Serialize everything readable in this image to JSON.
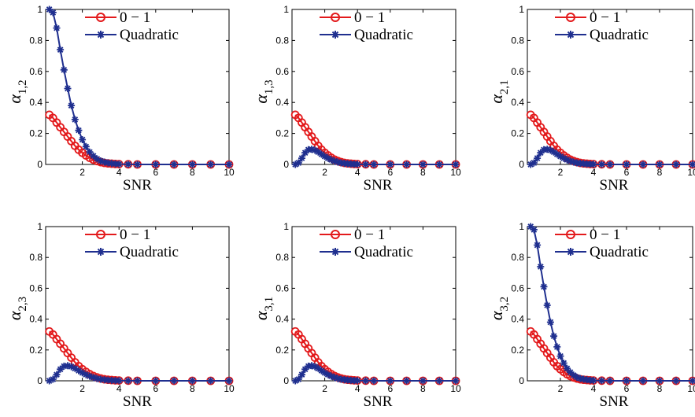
{
  "chart_data": [
    {
      "type": "line",
      "ylabel_symbol": "α",
      "ylabel_sub": "1,2",
      "xlabel": "SNR",
      "xlim": [
        0,
        10
      ],
      "ylim": [
        0,
        1
      ],
      "xticks": [
        "2",
        "4",
        "6",
        "8",
        "10"
      ],
      "yticks": [
        "0",
        "0.2",
        "0.4",
        "0.6",
        "0.8",
        "1"
      ],
      "legend_position": "top",
      "series": [
        {
          "name": "0 − 1",
          "color": "#e31a1c",
          "marker": "circle",
          "x": [
            0.2,
            0.4,
            0.6,
            0.8,
            1.0,
            1.2,
            1.4,
            1.6,
            1.8,
            2.0,
            2.2,
            2.4,
            2.6,
            2.8,
            3.0,
            3.2,
            3.4,
            3.6,
            3.8,
            4.0,
            4.5,
            5,
            6,
            7,
            8,
            9,
            10
          ],
          "y": [
            0.32,
            0.3,
            0.27,
            0.24,
            0.21,
            0.18,
            0.15,
            0.12,
            0.095,
            0.075,
            0.058,
            0.043,
            0.031,
            0.022,
            0.015,
            0.01,
            0.007,
            0.005,
            0.003,
            0.002,
            0.001,
            0,
            0,
            0,
            0,
            0,
            0
          ]
        },
        {
          "name": "Quadratic",
          "color": "#1f2f8f",
          "marker": "star",
          "x": [
            0.2,
            0.4,
            0.6,
            0.8,
            1.0,
            1.2,
            1.4,
            1.6,
            1.8,
            2.0,
            2.2,
            2.4,
            2.6,
            2.8,
            3.0,
            3.2,
            3.4,
            3.6,
            3.8,
            4.0,
            4.5,
            5,
            6,
            7,
            8,
            9,
            10
          ],
          "y": [
            1.0,
            0.98,
            0.88,
            0.74,
            0.61,
            0.49,
            0.38,
            0.29,
            0.22,
            0.16,
            0.115,
            0.08,
            0.055,
            0.036,
            0.023,
            0.015,
            0.01,
            0.006,
            0.004,
            0.002,
            0.001,
            0,
            0,
            0,
            0,
            0,
            0
          ]
        }
      ]
    },
    {
      "type": "line",
      "ylabel_symbol": "α",
      "ylabel_sub": "1,3",
      "xlabel": "SNR",
      "xlim": [
        0,
        10
      ],
      "ylim": [
        0,
        1
      ],
      "xticks": [
        "2",
        "4",
        "6",
        "8",
        "10"
      ],
      "yticks": [
        "0",
        "0.2",
        "0.4",
        "0.6",
        "0.8",
        "1"
      ],
      "legend_position": "top",
      "series": [
        {
          "name": "0 − 1",
          "color": "#e31a1c",
          "marker": "circle",
          "x": [
            0.2,
            0.4,
            0.6,
            0.8,
            1.0,
            1.2,
            1.4,
            1.6,
            1.8,
            2.0,
            2.2,
            2.4,
            2.6,
            2.8,
            3.0,
            3.2,
            3.4,
            3.6,
            3.8,
            4.0,
            4.5,
            5,
            6,
            7,
            8,
            9,
            10
          ],
          "y": [
            0.32,
            0.3,
            0.27,
            0.24,
            0.21,
            0.18,
            0.15,
            0.12,
            0.095,
            0.075,
            0.058,
            0.043,
            0.031,
            0.022,
            0.015,
            0.01,
            0.007,
            0.005,
            0.003,
            0.002,
            0.001,
            0,
            0,
            0,
            0,
            0,
            0
          ]
        },
        {
          "name": "Quadratic",
          "color": "#1f2f8f",
          "marker": "star",
          "x": [
            0.2,
            0.4,
            0.6,
            0.8,
            1.0,
            1.2,
            1.4,
            1.6,
            1.8,
            2.0,
            2.2,
            2.4,
            2.6,
            2.8,
            3.0,
            3.2,
            3.4,
            3.6,
            3.8,
            4.0,
            4.5,
            5,
            6,
            7,
            8,
            9,
            10
          ],
          "y": [
            0.0,
            0.01,
            0.04,
            0.075,
            0.095,
            0.098,
            0.092,
            0.08,
            0.066,
            0.052,
            0.04,
            0.03,
            0.022,
            0.015,
            0.01,
            0.007,
            0.005,
            0.003,
            0.002,
            0.001,
            0.0005,
            0,
            0,
            0,
            0,
            0,
            0
          ]
        }
      ]
    },
    {
      "type": "line",
      "ylabel_symbol": "α",
      "ylabel_sub": "2,1",
      "xlabel": "SNR",
      "xlim": [
        0,
        10
      ],
      "ylim": [
        0,
        1
      ],
      "xticks": [
        "2",
        "4",
        "6",
        "8",
        "10"
      ],
      "yticks": [
        "0",
        "0.2",
        "0.4",
        "0.6",
        "0.8",
        "1"
      ],
      "legend_position": "top",
      "series": [
        {
          "name": "0 − 1",
          "color": "#e31a1c",
          "marker": "circle",
          "x": [
            0.2,
            0.4,
            0.6,
            0.8,
            1.0,
            1.2,
            1.4,
            1.6,
            1.8,
            2.0,
            2.2,
            2.4,
            2.6,
            2.8,
            3.0,
            3.2,
            3.4,
            3.6,
            3.8,
            4.0,
            4.5,
            5,
            6,
            7,
            8,
            9,
            10
          ],
          "y": [
            0.32,
            0.3,
            0.27,
            0.24,
            0.21,
            0.18,
            0.15,
            0.12,
            0.095,
            0.075,
            0.058,
            0.043,
            0.031,
            0.022,
            0.015,
            0.01,
            0.007,
            0.005,
            0.003,
            0.002,
            0.001,
            0,
            0,
            0,
            0,
            0,
            0
          ]
        },
        {
          "name": "Quadratic",
          "color": "#1f2f8f",
          "marker": "star",
          "x": [
            0.2,
            0.4,
            0.6,
            0.8,
            1.0,
            1.2,
            1.4,
            1.6,
            1.8,
            2.0,
            2.2,
            2.4,
            2.6,
            2.8,
            3.0,
            3.2,
            3.4,
            3.6,
            3.8,
            4.0,
            4.5,
            5,
            6,
            7,
            8,
            9,
            10
          ],
          "y": [
            0.0,
            0.01,
            0.04,
            0.075,
            0.095,
            0.098,
            0.092,
            0.08,
            0.066,
            0.052,
            0.04,
            0.03,
            0.022,
            0.015,
            0.01,
            0.007,
            0.005,
            0.003,
            0.002,
            0.001,
            0.0005,
            0,
            0,
            0,
            0,
            0,
            0
          ]
        }
      ]
    },
    {
      "type": "line",
      "ylabel_symbol": "α",
      "ylabel_sub": "2,3",
      "xlabel": "SNR",
      "xlim": [
        0,
        10
      ],
      "ylim": [
        0,
        1
      ],
      "xticks": [
        "2",
        "4",
        "6",
        "8",
        "10"
      ],
      "yticks": [
        "0",
        "0.2",
        "0.4",
        "0.6",
        "0.8",
        "1"
      ],
      "legend_position": "top",
      "series": [
        {
          "name": "0 − 1",
          "color": "#e31a1c",
          "marker": "circle",
          "x": [
            0.2,
            0.4,
            0.6,
            0.8,
            1.0,
            1.2,
            1.4,
            1.6,
            1.8,
            2.0,
            2.2,
            2.4,
            2.6,
            2.8,
            3.0,
            3.2,
            3.4,
            3.6,
            3.8,
            4.0,
            4.5,
            5,
            6,
            7,
            8,
            9,
            10
          ],
          "y": [
            0.32,
            0.3,
            0.27,
            0.24,
            0.21,
            0.18,
            0.15,
            0.12,
            0.095,
            0.075,
            0.058,
            0.043,
            0.031,
            0.022,
            0.015,
            0.01,
            0.007,
            0.005,
            0.003,
            0.002,
            0.001,
            0,
            0,
            0,
            0,
            0,
            0
          ]
        },
        {
          "name": "Quadratic",
          "color": "#1f2f8f",
          "marker": "star",
          "x": [
            0.2,
            0.4,
            0.6,
            0.8,
            1.0,
            1.2,
            1.4,
            1.6,
            1.8,
            2.0,
            2.2,
            2.4,
            2.6,
            2.8,
            3.0,
            3.2,
            3.4,
            3.6,
            3.8,
            4.0,
            4.5,
            5,
            6,
            7,
            8,
            9,
            10
          ],
          "y": [
            0.0,
            0.01,
            0.04,
            0.075,
            0.095,
            0.098,
            0.092,
            0.08,
            0.066,
            0.052,
            0.04,
            0.03,
            0.022,
            0.015,
            0.01,
            0.007,
            0.005,
            0.003,
            0.002,
            0.001,
            0.0005,
            0,
            0,
            0,
            0,
            0,
            0
          ]
        }
      ]
    },
    {
      "type": "line",
      "ylabel_symbol": "α",
      "ylabel_sub": "3,1",
      "xlabel": "SNR",
      "xlim": [
        0,
        10
      ],
      "ylim": [
        0,
        1
      ],
      "xticks": [
        "2",
        "4",
        "6",
        "8",
        "10"
      ],
      "yticks": [
        "0",
        "0.2",
        "0.4",
        "0.6",
        "0.8",
        "1"
      ],
      "legend_position": "top",
      "series": [
        {
          "name": "0 − 1",
          "color": "#e31a1c",
          "marker": "circle",
          "x": [
            0.2,
            0.4,
            0.6,
            0.8,
            1.0,
            1.2,
            1.4,
            1.6,
            1.8,
            2.0,
            2.2,
            2.4,
            2.6,
            2.8,
            3.0,
            3.2,
            3.4,
            3.6,
            3.8,
            4.0,
            4.5,
            5,
            6,
            7,
            8,
            9,
            10
          ],
          "y": [
            0.32,
            0.3,
            0.27,
            0.24,
            0.21,
            0.18,
            0.15,
            0.12,
            0.095,
            0.075,
            0.058,
            0.043,
            0.031,
            0.022,
            0.015,
            0.01,
            0.007,
            0.005,
            0.003,
            0.002,
            0.001,
            0,
            0,
            0,
            0,
            0,
            0
          ]
        },
        {
          "name": "Quadratic",
          "color": "#1f2f8f",
          "marker": "star",
          "x": [
            0.2,
            0.4,
            0.6,
            0.8,
            1.0,
            1.2,
            1.4,
            1.6,
            1.8,
            2.0,
            2.2,
            2.4,
            2.6,
            2.8,
            3.0,
            3.2,
            3.4,
            3.6,
            3.8,
            4.0,
            4.5,
            5,
            6,
            7,
            8,
            9,
            10
          ],
          "y": [
            0.0,
            0.01,
            0.04,
            0.075,
            0.095,
            0.098,
            0.092,
            0.08,
            0.066,
            0.052,
            0.04,
            0.03,
            0.022,
            0.015,
            0.01,
            0.007,
            0.005,
            0.003,
            0.002,
            0.001,
            0.0005,
            0,
            0,
            0,
            0,
            0,
            0
          ]
        }
      ]
    },
    {
      "type": "line",
      "ylabel_symbol": "α",
      "ylabel_sub": "3,2",
      "xlabel": "SNR",
      "xlim": [
        0,
        10
      ],
      "ylim": [
        0,
        1
      ],
      "xticks": [
        "2",
        "4",
        "6",
        "8",
        "10"
      ],
      "yticks": [
        "0",
        "0.2",
        "0.4",
        "0.6",
        "0.8",
        "1"
      ],
      "legend_position": "top",
      "series": [
        {
          "name": "0 − 1",
          "color": "#e31a1c",
          "marker": "circle",
          "x": [
            0.2,
            0.4,
            0.6,
            0.8,
            1.0,
            1.2,
            1.4,
            1.6,
            1.8,
            2.0,
            2.2,
            2.4,
            2.6,
            2.8,
            3.0,
            3.2,
            3.4,
            3.6,
            3.8,
            4.0,
            4.5,
            5,
            6,
            7,
            8,
            9,
            10
          ],
          "y": [
            0.32,
            0.3,
            0.27,
            0.24,
            0.21,
            0.18,
            0.15,
            0.12,
            0.095,
            0.075,
            0.058,
            0.043,
            0.031,
            0.022,
            0.015,
            0.01,
            0.007,
            0.005,
            0.003,
            0.002,
            0.001,
            0,
            0,
            0,
            0,
            0,
            0
          ]
        },
        {
          "name": "Quadratic",
          "color": "#1f2f8f",
          "marker": "star",
          "x": [
            0.2,
            0.4,
            0.6,
            0.8,
            1.0,
            1.2,
            1.4,
            1.6,
            1.8,
            2.0,
            2.2,
            2.4,
            2.6,
            2.8,
            3.0,
            3.2,
            3.4,
            3.6,
            3.8,
            4.0,
            4.5,
            5,
            6,
            7,
            8,
            9,
            10
          ],
          "y": [
            1.0,
            0.98,
            0.88,
            0.74,
            0.61,
            0.49,
            0.38,
            0.29,
            0.22,
            0.16,
            0.115,
            0.08,
            0.055,
            0.036,
            0.023,
            0.015,
            0.01,
            0.006,
            0.004,
            0.002,
            0.001,
            0,
            0,
            0,
            0,
            0,
            0
          ]
        }
      ]
    }
  ]
}
